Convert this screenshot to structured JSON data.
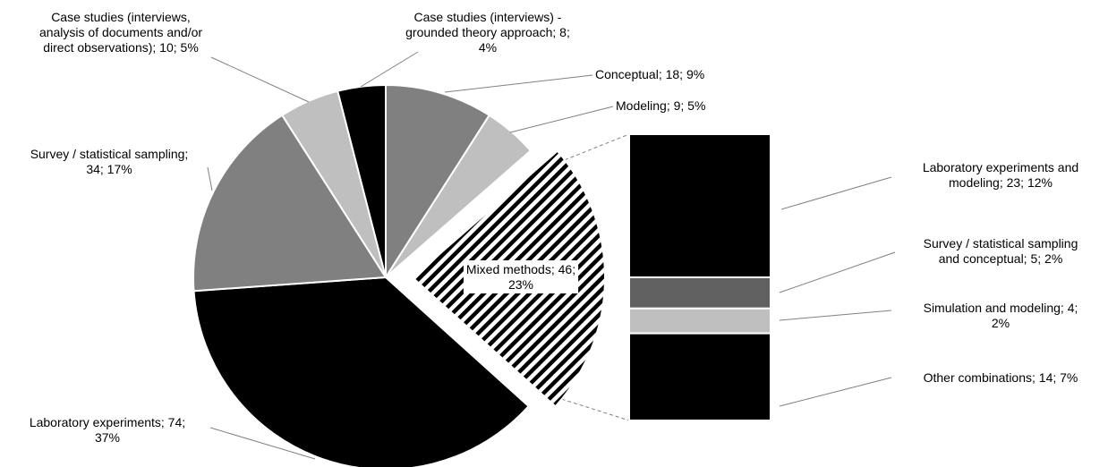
{
  "chart_data": {
    "type": "pie",
    "title": "",
    "pie": {
      "slices": [
        {
          "name": "Conceptual",
          "value": 18,
          "percent": "9%",
          "color": "#808080",
          "label": [
            "Conceptual; 18; 9%"
          ]
        },
        {
          "name": "Modeling",
          "value": 9,
          "percent": "5%",
          "color": "#bfbfbf",
          "label": [
            "Modeling; 9; 5%"
          ]
        },
        {
          "name": "Mixed methods",
          "value": 46,
          "percent": "23%",
          "color": "hatched",
          "exploded": true,
          "label": [
            "Mixed methods; 46;",
            "23%"
          ]
        },
        {
          "name": "Laboratory experiments",
          "value": 74,
          "percent": "37%",
          "color": "#000000",
          "label": [
            "Laboratory experiments; 74;",
            "37%"
          ]
        },
        {
          "name": "Survey / statistical sampling",
          "value": 34,
          "percent": "17%",
          "color": "#808080",
          "label": [
            "Survey / statistical sampling;",
            "34; 17%"
          ]
        },
        {
          "name": "Case studies (interviews, analysis of documents and/or direct observations)",
          "value": 10,
          "percent": "5%",
          "color": "#bfbfbf",
          "label": [
            "Case studies (interviews,",
            "analysis of documents and/or",
            "direct observations); 10; 5%"
          ]
        },
        {
          "name": "Case studies (interviews) - grounded theory approach",
          "value": 8,
          "percent": "4%",
          "color": "#000000",
          "label": [
            "Case studies (interviews) -",
            "grounded theory approach; 8;",
            "4%"
          ]
        }
      ]
    },
    "breakdown": {
      "of": "Mixed methods",
      "segments": [
        {
          "name": "Laboratory experiments and modeling",
          "value": 23,
          "percent": "12%",
          "color": "#000000",
          "label": [
            "Laboratory experiments and",
            "modeling; 23; 12%"
          ]
        },
        {
          "name": "Survey / statistical sampling and conceptual",
          "value": 5,
          "percent": "2%",
          "color": "#606060",
          "label": [
            "Survey / statistical sampling",
            "and conceptual; 5; 2%"
          ]
        },
        {
          "name": "Simulation and modeling",
          "value": 4,
          "percent": "2%",
          "color": "#bfbfbf",
          "label": [
            "Simulation and modeling; 4;",
            "2%"
          ]
        },
        {
          "name": "Other combinations",
          "value": 14,
          "percent": "7%",
          "color": "#000000",
          "label": [
            "Other combinations; 14; 7%"
          ]
        }
      ]
    }
  }
}
